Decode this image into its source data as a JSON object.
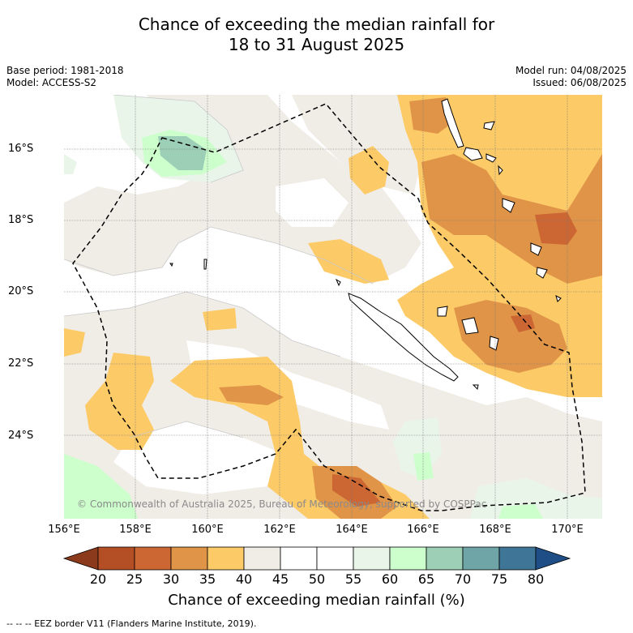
{
  "title_line1": "Chance of exceeding the median rainfall for",
  "title_line2": "18 to 31 August 2025",
  "meta_left": {
    "base_period": "Base period: 1981-2018",
    "model": "Model: ACCESS-S2"
  },
  "meta_right": {
    "model_run": "Model run: 04/08/2025",
    "issued": "Issued: 06/08/2025"
  },
  "lat_labels": [
    "16°S",
    "18°S",
    "20°S",
    "22°S",
    "24°S"
  ],
  "lon_labels": [
    "156°E",
    "158°E",
    "160°E",
    "162°E",
    "164°E",
    "166°E",
    "168°E",
    "170°E"
  ],
  "copyright": "© Commonwealth of Australia 2025, Bureau of Meteorology, supported by COSPPac",
  "colorbar": {
    "ticks": [
      "20",
      "25",
      "30",
      "35",
      "40",
      "45",
      "50",
      "55",
      "60",
      "65",
      "70",
      "75",
      "80"
    ],
    "colors": [
      "#8c3a1c",
      "#b34e25",
      "#cc6633",
      "#e09448",
      "#fdca68",
      "#f0ede7",
      "#ffffff",
      "#ffffff",
      "#e8f5e8",
      "#ccffcc",
      "#9ccfb6",
      "#6fa5a6",
      "#3f7597",
      "#1f4d85"
    ],
    "title": "Chance of exceeding median rainfall (%)"
  },
  "footnote": "-- -- -- EEZ border V11 (Flanders Marine Institute, 2019)."
}
